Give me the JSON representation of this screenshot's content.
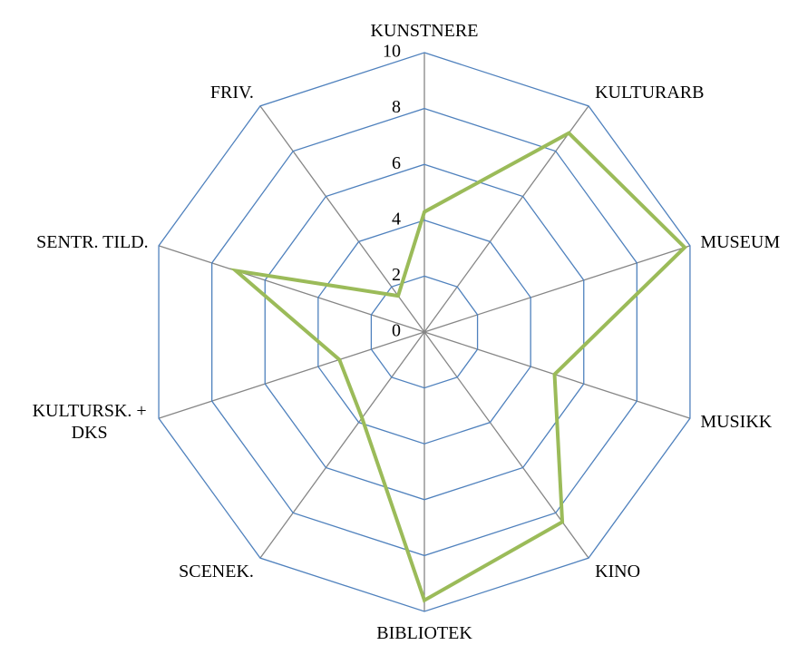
{
  "chart_data": {
    "type": "radar",
    "categories": [
      "KUNSTNERE",
      "KULTURARB",
      "MUSEUM",
      "MUSIKK",
      "KINO",
      "BIBLIOTEK",
      "SCENEK.",
      "KULTURSK. + DKS",
      "SENTR. TILD.",
      "FRIV."
    ],
    "series": [
      {
        "name": null,
        "color": "#9bbb59",
        "values": [
          4.3,
          8.8,
          9.8,
          4.9,
          8.4,
          9.6,
          3.8,
          3.2,
          7.1,
          1.6
        ]
      }
    ],
    "rlim": [
      0,
      10
    ],
    "rticks": [
      0,
      2,
      4,
      6,
      8,
      10
    ],
    "grid_color": "#4f81bd",
    "spoke_color": "#868686"
  }
}
